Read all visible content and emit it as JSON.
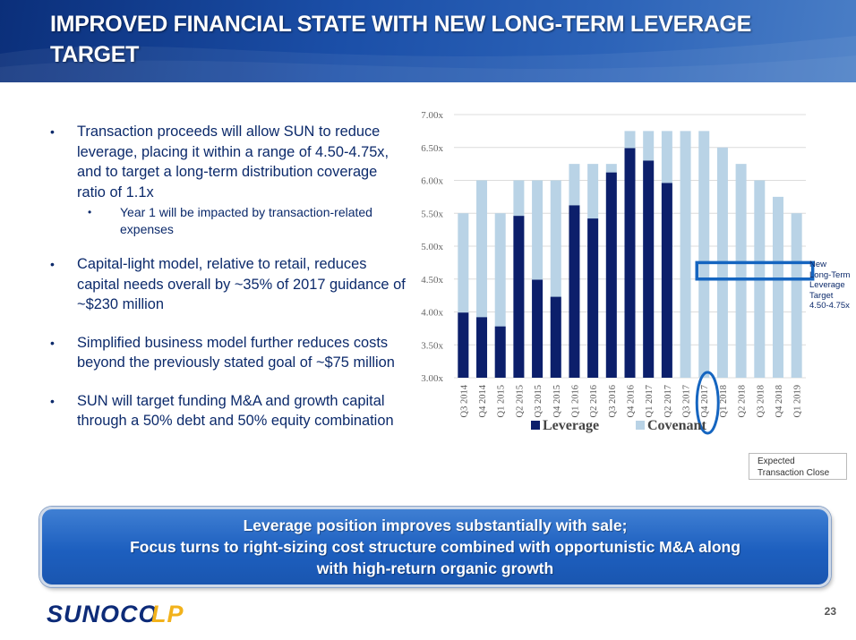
{
  "title": "IMPROVED FINANCIAL STATE WITH NEW LONG-TERM LEVERAGE TARGET",
  "bullets": {
    "b1": "Transaction proceeds will allow SUN to reduce leverage, placing it within a range of 4.50-4.75x, and to target a long-term distribution coverage ratio of 1.1x",
    "b1_sub": "Year 1 will be impacted by transaction-related expenses",
    "b2": "Capital-light model, relative to retail, reduces capital needs overall by ~35% of 2017 guidance of ~$230 million",
    "b3": "Simplified business model further reduces costs beyond the previously stated goal of ~$75 million",
    "b4": "SUN will target funding M&A and growth capital through a 50% debt and 50% equity combination"
  },
  "chart_data": {
    "type": "bar",
    "categories": [
      "Q3 2014",
      "Q4 2014",
      "Q1 2015",
      "Q2 2015",
      "Q3 2015",
      "Q4 2015",
      "Q1 2016",
      "Q2 2016",
      "Q3 2016",
      "Q4 2016",
      "Q1 2017",
      "Q2 2017",
      "Q3 2017",
      "Q4 2017",
      "Q1 2018",
      "Q2 2018",
      "Q3 2018",
      "Q4 2018",
      "Q1 2019"
    ],
    "series": [
      {
        "name": "Leverage",
        "color": "#0c1f6b",
        "values": [
          3.99,
          3.92,
          3.78,
          5.46,
          4.49,
          4.23,
          5.62,
          5.42,
          6.12,
          6.49,
          6.3,
          5.96,
          null,
          null,
          null,
          null,
          null,
          null,
          null
        ]
      },
      {
        "name": "Covenant",
        "color": "#b9d3e6",
        "values": [
          5.5,
          6.0,
          5.5,
          6.0,
          6.0,
          6.0,
          6.25,
          6.25,
          6.25,
          6.75,
          6.75,
          6.75,
          6.75,
          6.75,
          6.5,
          6.25,
          6.0,
          5.75,
          5.5
        ]
      }
    ],
    "ylim": [
      3.0,
      7.0
    ],
    "yticks": [
      "3.00x",
      "3.50x",
      "4.00x",
      "4.50x",
      "5.00x",
      "5.50x",
      "6.00x",
      "6.50x",
      "7.00x"
    ],
    "ytick_values": [
      3.0,
      3.5,
      4.0,
      4.5,
      5.0,
      5.5,
      6.0,
      6.5,
      7.0
    ],
    "grid": true,
    "legend_position": "bottom",
    "target_band": {
      "from_category": "Q4 2017",
      "to_category": "Q1 2019",
      "low": 4.5,
      "high": 4.75,
      "color": "#1565c0"
    },
    "target_label": [
      "New",
      "Long-Term",
      "Leverage",
      "Target",
      "4.50-4.75x"
    ],
    "highlight_category": "Q4 2017",
    "annotation": [
      "Expected",
      "Transaction Close"
    ]
  },
  "banner": {
    "line1": "Leverage position improves substantially with sale;",
    "line2": "Focus turns to right-sizing cost structure combined with opportunistic M&A along",
    "line3": "with high-return organic growth"
  },
  "logo_text": "SUNOCO LP",
  "page_number": "23",
  "colors": {
    "accent": "#1a56b0",
    "header_dark": "#0b2f7a",
    "text_navy": "#0c2a6b"
  }
}
